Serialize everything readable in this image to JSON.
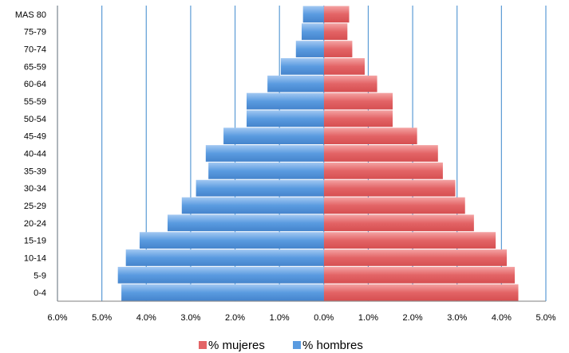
{
  "chart_data": {
    "type": "bar",
    "orientation": "horizontal",
    "categories": [
      "0-4",
      "5-9",
      "10-14",
      "15-19",
      "20-24",
      "25-29",
      "30-34",
      "35-39",
      "40-44",
      "45-49",
      "50-54",
      "55-59",
      "60-64",
      "65-59",
      "70-74",
      "75-79",
      "MAS 80"
    ],
    "series": [
      {
        "name": "% mujeres",
        "color": "#e36466",
        "values": [
          4.38,
          4.3,
          4.12,
          3.87,
          3.38,
          3.18,
          2.96,
          2.68,
          2.57,
          2.1,
          1.55,
          1.55,
          1.2,
          0.92,
          0.64,
          0.53,
          0.57
        ]
      },
      {
        "name": "% hombres",
        "color": "#5a9be0",
        "values": [
          -4.56,
          -4.64,
          -4.46,
          -4.15,
          -3.52,
          -3.2,
          -2.88,
          -2.6,
          -2.66,
          -2.26,
          -1.74,
          -1.74,
          -1.27,
          -0.97,
          -0.63,
          -0.5,
          -0.47
        ]
      }
    ],
    "x_ticks": [
      "6.0%",
      "5.0%",
      "4.0%",
      "3.0%",
      "2.0%",
      "1.0%",
      "0.0%",
      "1.0%",
      "2.0%",
      "3.0%",
      "4.0%",
      "5.0%"
    ],
    "xlim": [
      -6,
      5
    ],
    "grid": "vertical",
    "legend_position": "bottom",
    "legend": [
      "% mujeres",
      "% hombres"
    ]
  }
}
